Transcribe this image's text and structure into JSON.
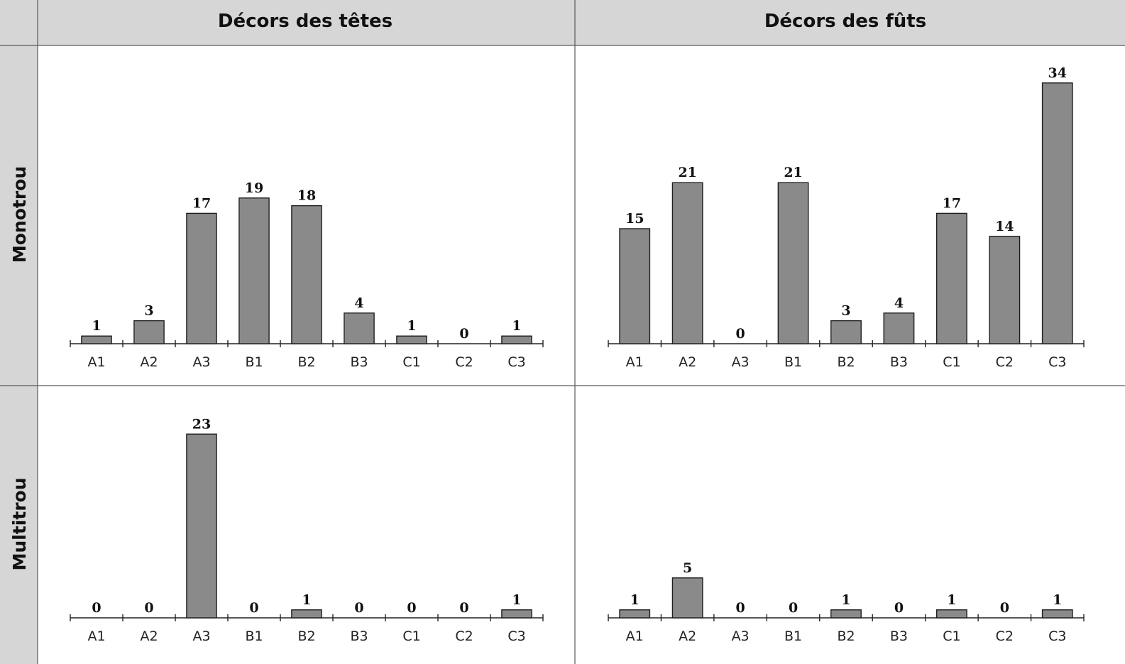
{
  "columns": [
    "Décors des têtes",
    "Décors des fûts"
  ],
  "rows": [
    "Monotrou",
    "Multitrou"
  ],
  "chart_data": [
    {
      "type": "bar",
      "row": "Monotrou",
      "column": "Décors des têtes",
      "categories": [
        "A1",
        "A2",
        "A3",
        "B1",
        "B2",
        "B3",
        "C1",
        "C2",
        "C3"
      ],
      "values": [
        1,
        3,
        17,
        19,
        18,
        4,
        1,
        0,
        1
      ],
      "ylim": [
        0,
        34
      ]
    },
    {
      "type": "bar",
      "row": "Monotrou",
      "column": "Décors des fûts",
      "categories": [
        "A1",
        "A2",
        "A3",
        "B1",
        "B2",
        "B3",
        "C1",
        "C2",
        "C3"
      ],
      "values": [
        15,
        21,
        0,
        21,
        3,
        4,
        17,
        14,
        34
      ],
      "ylim": [
        0,
        34
      ]
    },
    {
      "type": "bar",
      "row": "Multitrou",
      "column": "Décors des têtes",
      "categories": [
        "A1",
        "A2",
        "A3",
        "B1",
        "B2",
        "B3",
        "C1",
        "C2",
        "C3"
      ],
      "values": [
        0,
        0,
        23,
        0,
        1,
        0,
        0,
        0,
        1
      ],
      "ylim": [
        0,
        23
      ]
    },
    {
      "type": "bar",
      "row": "Multitrou",
      "column": "Décors des fûts",
      "categories": [
        "A1",
        "A2",
        "A3",
        "B1",
        "B2",
        "B3",
        "C1",
        "C2",
        "C3"
      ],
      "values": [
        1,
        5,
        0,
        0,
        1,
        0,
        1,
        0,
        1
      ],
      "ylim": [
        0,
        23
      ]
    }
  ]
}
